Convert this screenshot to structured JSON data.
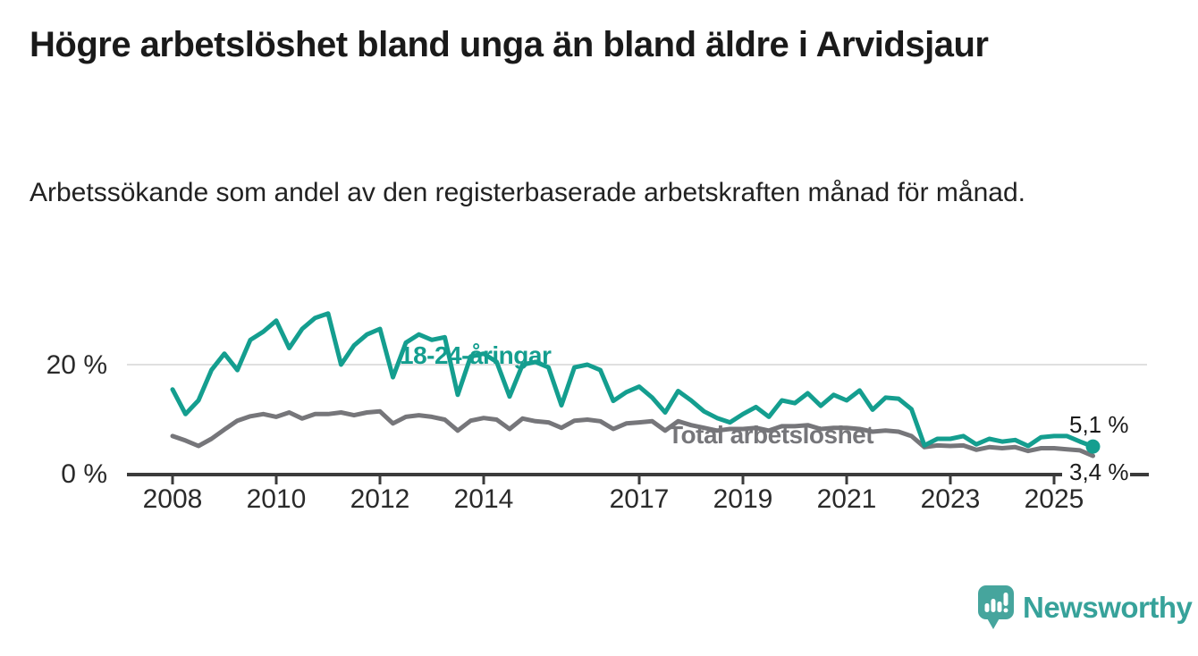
{
  "header": {
    "title": "Högre arbetslöshet bland unga än bland äldre i Arvidsjaur",
    "subtitle": "Arbetssökande som andel av den registerbaserade arbetskraften månad för månad."
  },
  "chart_data": {
    "type": "line",
    "title": "Högre arbetslöshet bland unga än bland äldre i Arvidsjaur",
    "subtitle": "Arbetssökande som andel av den registerbaserade arbetskraften månad för månad.",
    "x_unit": "year",
    "x_start": 2008.0,
    "x_step": 0.25,
    "x_end": 2025.75,
    "ylim": [
      0,
      31
    ],
    "grid": "single horizontal gridline at 20 %",
    "legend_position": "inline labels on lines",
    "yticks": [
      {
        "value": 0,
        "label": "0 %"
      },
      {
        "value": 20,
        "label": "20 %"
      }
    ],
    "xticks": [
      2008,
      2010,
      2012,
      2014,
      2017,
      2019,
      2021,
      2023,
      2025
    ],
    "series": [
      {
        "name": "Total arbetslöshet",
        "color": "#76767a",
        "end_value": 3.4,
        "end_label": "3,4 %",
        "end_dot": false,
        "values": [
          7,
          6.2,
          5.2,
          6.5,
          8.2,
          9.8,
          10.6,
          11,
          10.5,
          11.3,
          10.2,
          11,
          11,
          11.3,
          10.8,
          11.3,
          11.5,
          9.3,
          10.5,
          10.8,
          10.5,
          10,
          8,
          9.8,
          10.3,
          10,
          8.3,
          10.2,
          9.7,
          9.5,
          8.5,
          9.8,
          10,
          9.7,
          8.3,
          9.3,
          9.5,
          9.7,
          8,
          9.7,
          9,
          8.5,
          8,
          8.3,
          8.3,
          8.5,
          8,
          8.8,
          8.8,
          9,
          8.3,
          8.5,
          8.5,
          8.3,
          7.8,
          8,
          7.8,
          7,
          5,
          5.3,
          5.2,
          5.3,
          4.5,
          5,
          4.8,
          5,
          4.3,
          4.8,
          4.8,
          4.6,
          4.4,
          3.4
        ]
      },
      {
        "name": "18-24-åringar",
        "color": "#149e8f",
        "end_value": 5.1,
        "end_label": "5,1 %",
        "end_dot": true,
        "values": [
          15.5,
          11,
          13.5,
          19,
          22,
          19,
          24.5,
          26,
          28,
          23,
          26.5,
          28.5,
          29.3,
          20,
          23.5,
          25.5,
          26.5,
          17.7,
          24,
          25.5,
          24.5,
          25,
          14.5,
          21.5,
          22,
          20.5,
          14.2,
          20,
          20.5,
          19.5,
          12.6,
          19.5,
          20,
          19,
          13.4,
          15,
          16,
          14,
          11.3,
          15.2,
          13.5,
          11.5,
          10.3,
          9.5,
          11,
          12.3,
          10.5,
          13.5,
          13,
          14.8,
          12.5,
          14.5,
          13.5,
          15.3,
          11.8,
          14,
          13.8,
          11.9,
          5.3,
          6.5,
          6.5,
          7,
          5.5,
          6.5,
          6,
          6.3,
          5.2,
          6.8,
          7,
          7,
          6,
          5.1
        ]
      }
    ]
  },
  "footer": {
    "brand": "Newsworthy"
  },
  "colors": {
    "youth_line": "#149e8f",
    "total_line": "#76767a",
    "value_label_text": "#1a1a1a",
    "axis": "#3b3b3b",
    "tick_text": "#2a2a2a",
    "gridline": "#d5d5d5",
    "brand_text": "#37a29a",
    "brand_icon": "#46a59d"
  }
}
